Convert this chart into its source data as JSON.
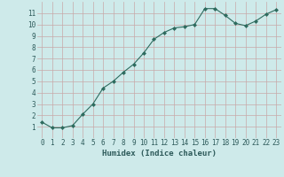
{
  "x": [
    0,
    1,
    2,
    3,
    4,
    5,
    6,
    7,
    8,
    9,
    10,
    11,
    12,
    13,
    14,
    15,
    16,
    17,
    18,
    19,
    20,
    21,
    22,
    23
  ],
  "y": [
    1.4,
    0.9,
    0.9,
    1.1,
    2.1,
    3.0,
    4.4,
    5.0,
    5.8,
    6.5,
    7.5,
    8.7,
    9.3,
    9.7,
    9.8,
    10.0,
    11.4,
    11.4,
    10.8,
    10.1,
    9.9,
    10.3,
    10.9,
    11.3
  ],
  "xlabel": "Humidex (Indice chaleur)",
  "xlim": [
    -0.5,
    23.5
  ],
  "ylim": [
    0.0,
    12.0
  ],
  "yticks": [
    1,
    2,
    3,
    4,
    5,
    6,
    7,
    8,
    9,
    10,
    11
  ],
  "xticks": [
    0,
    1,
    2,
    3,
    4,
    5,
    6,
    7,
    8,
    9,
    10,
    11,
    12,
    13,
    14,
    15,
    16,
    17,
    18,
    19,
    20,
    21,
    22,
    23
  ],
  "line_color": "#2d6b5e",
  "marker": "D",
  "marker_size": 2.0,
  "bg_color": "#ceeaea",
  "grid_color": "#c8a8a8",
  "font_color": "#2d5a5a",
  "xlabel_fontsize": 6.5,
  "tick_fontsize": 5.5
}
